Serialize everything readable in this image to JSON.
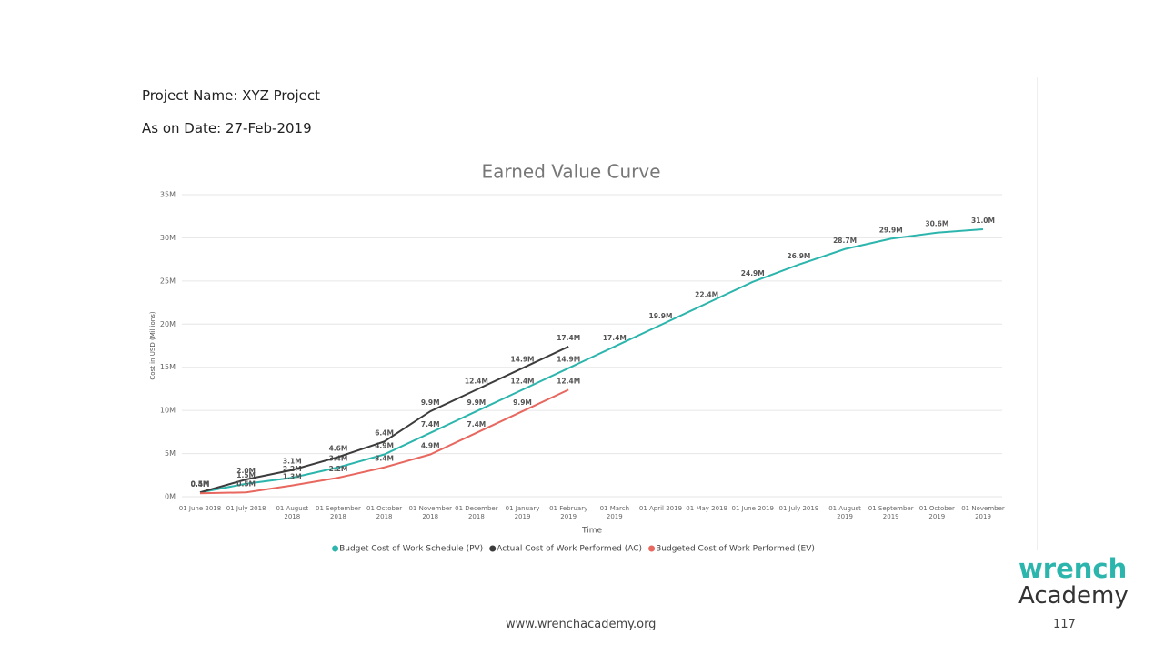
{
  "header": {
    "project": "Project Name: XYZ Project",
    "date": "As on Date: 27-Feb-2019"
  },
  "chart_data": {
    "type": "line",
    "title": "Earned Value Curve",
    "x_label": "Time",
    "y_label": "Cost in USD (Millions)",
    "categories": [
      "01 June 2018",
      "01 July 2018",
      "01 August 2018",
      "01 September 2018",
      "01 October 2018",
      "01 November 2018",
      "01 December 2018",
      "01 January 2019",
      "01 February 2019",
      "01 March 2019",
      "01 April 2019",
      "01 May 2019",
      "01 June 2019",
      "01 July 2019",
      "01 August 2019",
      "01 September 2019",
      "01 October 2019",
      "01 November 2019"
    ],
    "ylim": [
      0,
      35
    ],
    "yticks": [
      {
        "value": 0,
        "label": "0M"
      },
      {
        "value": 5,
        "label": "5M"
      },
      {
        "value": 10,
        "label": "10M"
      },
      {
        "value": 15,
        "label": "15M"
      },
      {
        "value": 20,
        "label": "20M"
      },
      {
        "value": 25,
        "label": "25M"
      },
      {
        "value": 30,
        "label": "30M"
      },
      {
        "value": 35,
        "label": "35M"
      }
    ],
    "grid": true,
    "legend": "bottom",
    "series": [
      {
        "name": "Budget Cost of Work Schedule (PV)",
        "color": "#2cb5ad",
        "values": [
          0.5,
          1.5,
          2.2,
          3.4,
          4.9,
          7.4,
          9.9,
          12.4,
          14.9,
          17.4,
          19.9,
          22.4,
          24.9,
          26.9,
          28.7,
          29.9,
          30.6,
          31.0
        ],
        "value_labels": [
          "0.5M",
          "1.5M",
          "2.2M",
          "3.4M",
          "4.9M",
          "7.4M",
          "9.9M",
          "12.4M",
          "14.9M",
          "17.4M",
          "19.9M",
          "22.4M",
          "24.9M",
          "26.9M",
          "28.7M",
          "29.9M",
          "30.6M",
          "31.0M"
        ]
      },
      {
        "name": "Actual Cost of Work Performed (AC)",
        "color": "#3c3c3c",
        "values": [
          0.5,
          2.0,
          3.1,
          4.6,
          6.4,
          9.9,
          12.4,
          14.9,
          17.4,
          null,
          null,
          null,
          null,
          null,
          null,
          null,
          null,
          null
        ],
        "value_labels": [
          "0.5M",
          "2.0M",
          "3.1M",
          "4.6M",
          "6.4M",
          "9.9M",
          "12.4M",
          "14.9M",
          "17.4M",
          null,
          null,
          null,
          null,
          null,
          null,
          null,
          null,
          null
        ]
      },
      {
        "name": "Budgeted Cost of Work Performed (EV)",
        "color": "#e8675f",
        "values": [
          0.4,
          0.5,
          1.3,
          2.2,
          3.4,
          4.9,
          7.4,
          9.9,
          12.4,
          null,
          null,
          null,
          null,
          null,
          null,
          null,
          null,
          null
        ],
        "value_labels": [
          "0.4M",
          "0.5M",
          "1.3M",
          "2.2M",
          "3.4M",
          "4.9M",
          "7.4M",
          "9.9M",
          "12.4M",
          null,
          null,
          null,
          null,
          null,
          null,
          null,
          null,
          null
        ]
      }
    ]
  },
  "footer": {
    "url": "www.wrenchacademy.org",
    "page": "117",
    "logo_top": "wrench",
    "logo_bottom": "Academy"
  }
}
